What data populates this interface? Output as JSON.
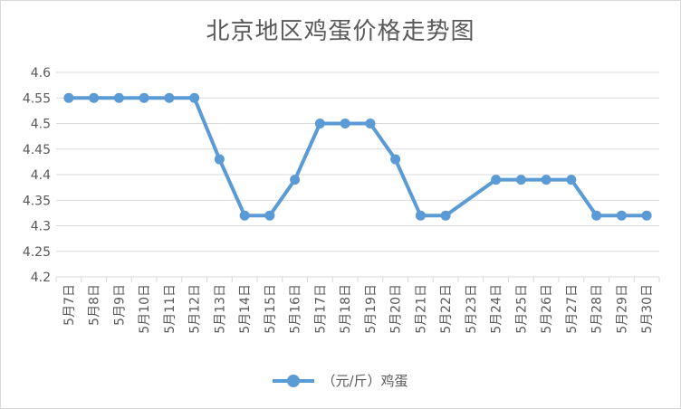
{
  "chart_data": {
    "type": "line",
    "title": "北京地区鸡蛋价格走势图",
    "categories": [
      "5月7日",
      "5月8日",
      "5月9日",
      "5月10日",
      "5月11日",
      "5月12日",
      "5月13日",
      "5月14日",
      "5月15日",
      "5月16日",
      "5月17日",
      "5月18日",
      "5月19日",
      "5月20日",
      "5月21日",
      "5月22日",
      "5月23日",
      "5月24日",
      "5月25日",
      "5月26日",
      "5月27日",
      "5月28日",
      "5月29日",
      "5月30日"
    ],
    "series": [
      {
        "name": "（元/斤）鸡蛋",
        "values": [
          4.55,
          4.55,
          4.55,
          4.55,
          4.55,
          4.55,
          4.43,
          4.32,
          4.32,
          4.39,
          4.5,
          4.5,
          4.5,
          4.43,
          4.32,
          4.32,
          null,
          4.39,
          4.39,
          4.39,
          4.39,
          4.32,
          4.32,
          4.32
        ]
      }
    ],
    "ylim": [
      4.2,
      4.6
    ],
    "yticks": [
      "4.2",
      "4.25",
      "4.3",
      "4.35",
      "4.4",
      "4.45",
      "4.5",
      "4.55",
      "4.6"
    ],
    "grid": true,
    "legend": "bottom",
    "color": "#5b9bd5"
  }
}
